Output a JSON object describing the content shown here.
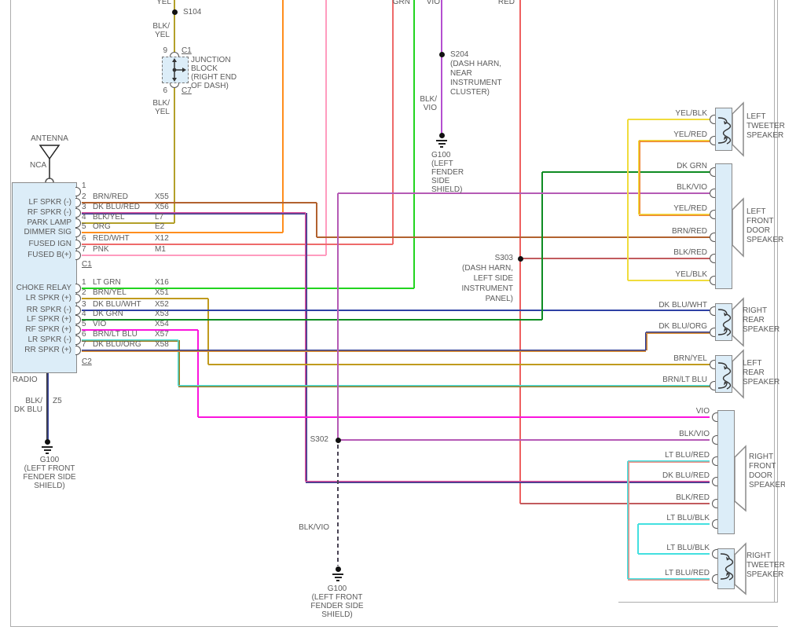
{
  "top_labels": [
    {
      "text": "YEL"
    },
    {
      "text": "GRN"
    },
    {
      "text": "VIO"
    },
    {
      "text": "RED"
    }
  ],
  "junction_block": {
    "splice": "S104",
    "wire_upper": [
      "BLK/",
      "YEL"
    ],
    "pin_top": "9",
    "conn_top": "C1",
    "title_lines": [
      "JUNCTION",
      "BLOCK",
      "(RIGHT END",
      "OF DASH)"
    ],
    "pin_bottom": "6",
    "conn_bottom": "C7",
    "wire_lower": [
      "BLK/",
      "YEL"
    ]
  },
  "radio": {
    "label": "RADIO",
    "antenna_label": "ANTENNA",
    "antenna_sub": "NCA",
    "connectors": [
      {
        "name": "C1",
        "pins": [
          {
            "pin": "1",
            "signal": "",
            "color": "",
            "code": ""
          },
          {
            "pin": "2",
            "signal": "LF SPKR (-)",
            "color": "BRN/RED",
            "code": "X55"
          },
          {
            "pin": "3",
            "signal": "RF SPKR (-)",
            "color": "DK BLU/RED",
            "code": "X56"
          },
          {
            "pin": "4",
            "signal": "PARK LAMP",
            "color": "BLK/YEL",
            "code": "L7"
          },
          {
            "pin": "5",
            "signal": "DIMMER SIG",
            "color": "ORG",
            "code": "E2"
          },
          {
            "pin": "6",
            "signal": "FUSED IGN",
            "color": "RED/WHT",
            "code": "X12"
          },
          {
            "pin": "7",
            "signal": "FUSED B(+)",
            "color": "PNK",
            "code": "M1"
          }
        ]
      },
      {
        "name": "C2",
        "pins": [
          {
            "pin": "1",
            "signal": "CHOKE RELAY",
            "color": "LT GRN",
            "code": "X16"
          },
          {
            "pin": "2",
            "signal": "LR SPKR (+)",
            "color": "BRN/YEL",
            "code": "X51"
          },
          {
            "pin": "3",
            "signal": "RR SPKR (-)",
            "color": "DK BLU/WHT",
            "code": "X52"
          },
          {
            "pin": "4",
            "signal": "LF SPKR (+)",
            "color": "DK GRN",
            "code": "X53"
          },
          {
            "pin": "5",
            "signal": "RF SPKR (+)",
            "color": "VIO",
            "code": "X54"
          },
          {
            "pin": "6",
            "signal": "LR SPKR (-)",
            "color": "BRN/LT BLU",
            "code": "X57"
          },
          {
            "pin": "7",
            "signal": "RR SPKR (+)",
            "color": "DK BLU/ORG",
            "code": "X58"
          }
        ]
      }
    ],
    "ground_wire": {
      "label_lines": [
        "BLK/",
        "DK BLU"
      ],
      "code": "Z5"
    },
    "ground_caption": [
      "G100",
      "(LEFT FRONT",
      "FENDER SIDE",
      "SHIELD)"
    ]
  },
  "s204": {
    "name": "S204",
    "desc_lines": [
      "(DASH HARN,",
      "NEAR",
      "INSTRUMENT",
      "CLUSTER)"
    ],
    "wire_label_lines": [
      "BLK/",
      "VIO"
    ],
    "ground_caption": [
      "G100",
      "(LEFT",
      "FENDER",
      "SIDE",
      "SHIELD)"
    ]
  },
  "s303": {
    "name": "S303",
    "desc_lines": [
      "(DASH HARN,",
      "LEFT SIDE",
      "INSTRUMENT",
      "PANEL)"
    ]
  },
  "s302": {
    "name": "S302",
    "wire_label": "BLK/VIO",
    "ground_caption": [
      "G100",
      "(LEFT FRONT",
      "FENDER SIDE",
      "SHIELD)"
    ]
  },
  "speakers": [
    {
      "id": "left-tweeter",
      "name_lines": [
        "LEFT",
        "TWEETER",
        "SPEAKER"
      ],
      "wires": [
        "YEL/BLK",
        "YEL/RED"
      ]
    },
    {
      "id": "left-front-door",
      "name_lines": [
        "LEFT",
        "FRONT",
        "DOOR",
        "SPEAKER"
      ],
      "wires": [
        "DK GRN",
        "BLK/VIO",
        "YEL/RED",
        "BRN/RED",
        "BLK/RED",
        "YEL/BLK"
      ]
    },
    {
      "id": "right-rear",
      "name_lines": [
        "RIGHT",
        "REAR",
        "SPEAKER"
      ],
      "wires": [
        "DK BLU/WHT",
        "DK BLU/ORG"
      ]
    },
    {
      "id": "left-rear",
      "name_lines": [
        "LEFT",
        "REAR",
        "SPEAKER"
      ],
      "wires": [
        "BRN/YEL",
        "BRN/LT BLU"
      ]
    },
    {
      "id": "right-front-door",
      "name_lines": [
        "RIGHT",
        "FRONT",
        "DOOR",
        "SPEAKER"
      ],
      "wires": [
        "VIO",
        "BLK/VIO",
        "LT BLU/RED",
        "DK BLU/RED",
        "BLK/RED",
        "LT BLU/BLK"
      ]
    },
    {
      "id": "right-tweeter",
      "name_lines": [
        "RIGHT",
        "TWEETER",
        "SPEAKER"
      ],
      "wires": [
        "LT BLU/BLK",
        "LT BLU/RED"
      ]
    }
  ],
  "colors": {
    "BLK/YEL": "#b3a02a",
    "ORG": "#ff8e1d",
    "PNK": "#ff9bbf",
    "RED/WHT": "#ee6a6a",
    "RED": "#ee6060",
    "BLK/RED": "#c25b5e",
    "BRN/RED": "#b2622f",
    "DK BLU/RED": [
      "#d8509c",
      "#333a8e"
    ],
    "LT GRN": "#22d41f",
    "BRN/YEL": "#c09a1d",
    "DK BLU/WHT": "#2e41a5",
    "DK GRN": "#0e8c22",
    "VIO": "#fb14dd",
    "BRN/LT BLU": [
      "#4adcd8",
      "#9a7b1f"
    ],
    "DK BLU/ORG": [
      "#2e3a90",
      "#de8f30"
    ],
    "BLK/VIO": "#b55ab5",
    "VIO_TOP": "#b44fd0",
    "YEL/BLK": "#f0dc3c",
    "YEL/RED": [
      "#f0dc3c",
      "#ef8332"
    ],
    "LT BLU/BLK": "#43e0e0",
    "LT BLU/RED": [
      "#43e0e0",
      "#f28d82"
    ],
    "BLK/DK BLU": [
      "#3a3a3a",
      "#3946a0"
    ],
    "dashed_ground": "#4a4455"
  }
}
